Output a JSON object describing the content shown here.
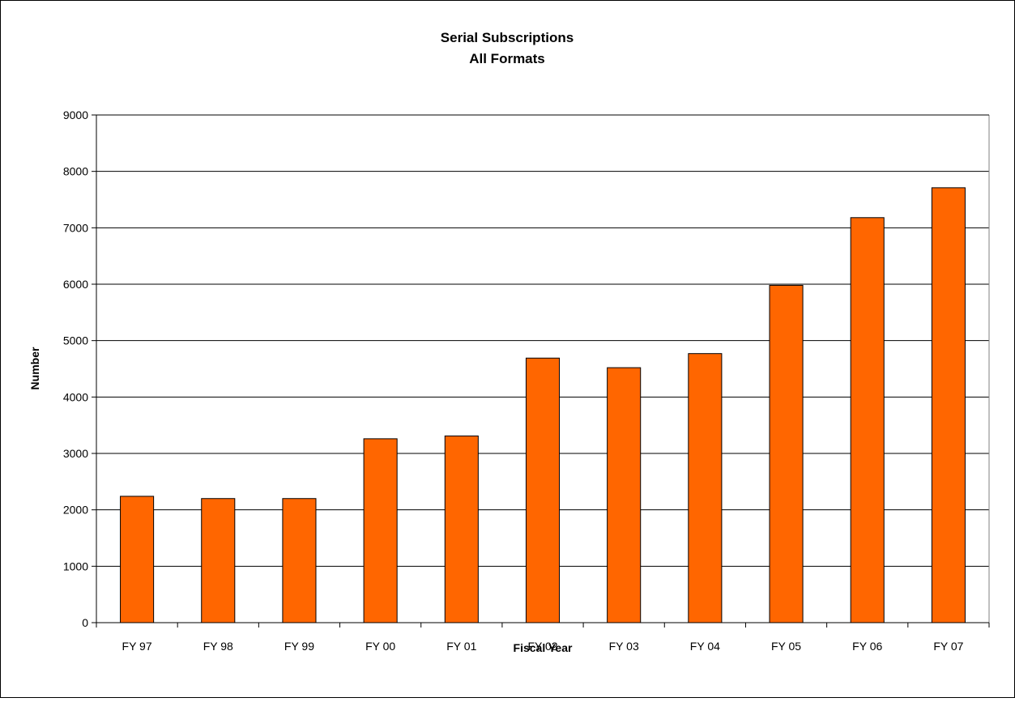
{
  "chart_data": {
    "type": "bar",
    "title": "Serial Subscriptions",
    "subtitle": "All Formats",
    "xlabel": "Fiscal Year",
    "ylabel": "Number",
    "categories": [
      "FY 97",
      "FY 98",
      "FY 99",
      "FY 00",
      "FY 01",
      "FY 02",
      "FY 03",
      "FY 04",
      "FY 05",
      "FY 06",
      "FY 07"
    ],
    "values": [
      2240,
      2200,
      2200,
      3260,
      3310,
      4690,
      4520,
      4770,
      5980,
      7180,
      7710
    ],
    "ylim": [
      0,
      9000
    ],
    "yticks": [
      "0",
      "1000",
      "2000",
      "3000",
      "4000",
      "5000",
      "6000",
      "7000",
      "8000",
      "9000"
    ],
    "grid": true,
    "legend": "none",
    "bar_color": "#FF6600",
    "bar_edge_color": "#000000"
  }
}
